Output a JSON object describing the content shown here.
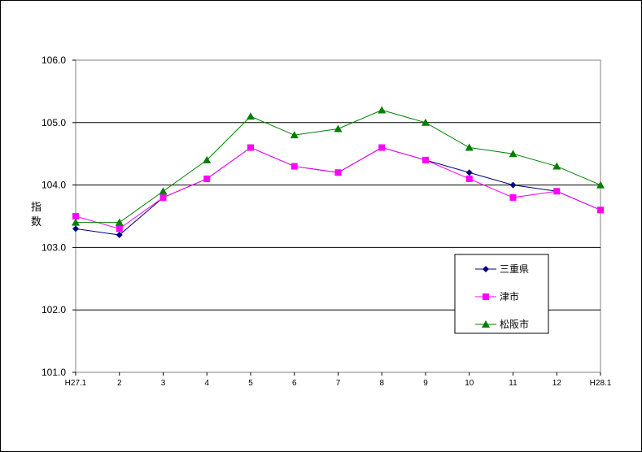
{
  "chart_data": {
    "type": "line",
    "ylabel": "指数",
    "ylim": [
      101.0,
      106.0
    ],
    "yticks": [
      "106.0",
      "105.0",
      "104.0",
      "103.0",
      "102.0",
      "101.0"
    ],
    "categories": [
      "H27.1",
      "2",
      "3",
      "4",
      "5",
      "6",
      "7",
      "8",
      "9",
      "10",
      "11",
      "12",
      "H28.1"
    ],
    "grid": "horizontal",
    "legend_position": "right",
    "series": [
      {
        "name": "三重県",
        "color": "#000080",
        "marker": "diamond",
        "values": [
          103.3,
          103.2,
          103.8,
          104.1,
          104.6,
          104.3,
          104.2,
          104.6,
          104.4,
          104.2,
          104.0,
          103.9,
          103.6
        ]
      },
      {
        "name": "津市",
        "color": "#ff00ff",
        "marker": "square",
        "values": [
          103.5,
          103.3,
          103.8,
          104.1,
          104.6,
          104.3,
          104.2,
          104.6,
          104.4,
          104.1,
          103.8,
          103.9,
          103.6
        ]
      },
      {
        "name": "松阪市",
        "color": "#008000",
        "marker": "triangle",
        "values": [
          103.4,
          103.4,
          103.9,
          104.4,
          105.1,
          104.8,
          104.9,
          105.2,
          105.0,
          104.6,
          104.5,
          104.3,
          104.0
        ]
      }
    ]
  }
}
